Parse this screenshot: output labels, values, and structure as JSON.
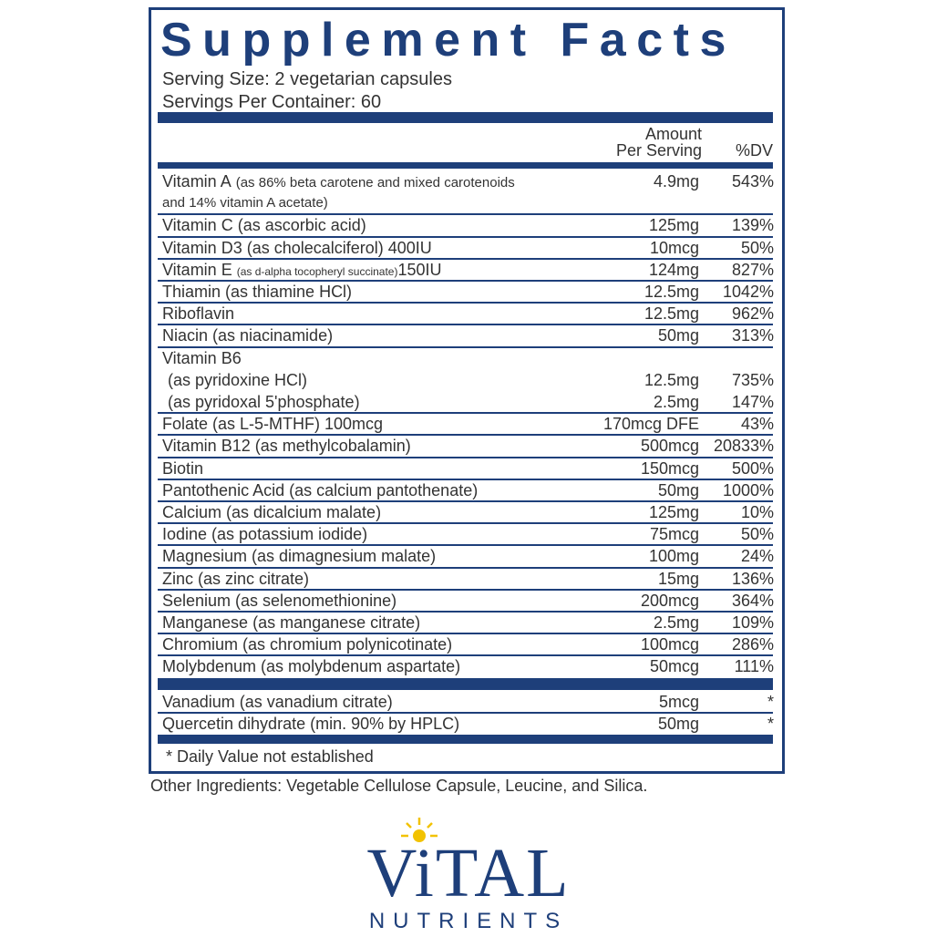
{
  "title": "Supplement Facts",
  "serving_size": "Serving Size: 2 vegetarian capsules",
  "servings_per_container": "Servings Per Container: 60",
  "header": {
    "amount_line1": "Amount",
    "amount_line2": "Per Serving",
    "dv": "%DV"
  },
  "rows": [
    {
      "name": "Vitamin A",
      "note": "(as 86% beta carotene and mixed carotenoids",
      "line2": "and 14% vitamin A acetate)",
      "amount": "4.9mg",
      "dv": "543%"
    },
    {
      "name": "Vitamin C (as ascorbic acid)",
      "amount": "125mg",
      "dv": "139%"
    },
    {
      "name": "Vitamin D3 (as cholecalciferol) 400IU",
      "amount": "10mcg",
      "dv": "50%"
    },
    {
      "name": "Vitamin E",
      "note": "(as d-alpha tocopheryl succinate)",
      "after": "150IU",
      "amount": "124mg",
      "dv": "827%"
    },
    {
      "name": "Thiamin (as thiamine HCl)",
      "amount": "12.5mg",
      "dv": "1042%"
    },
    {
      "name": "Riboflavin",
      "amount": "12.5mg",
      "dv": "962%"
    },
    {
      "name": "Niacin (as niacinamide)",
      "amount": "50mg",
      "dv": "313%"
    },
    {
      "name": "Vitamin B6",
      "forms": [
        {
          "name": "(as pyridoxine HCl)",
          "amount": "12.5mg",
          "dv": "735%"
        },
        {
          "name": "(as pyridoxal 5'phosphate)",
          "amount": "2.5mg",
          "dv": "147%"
        }
      ]
    },
    {
      "name": "Folate (as L-5-MTHF) 100mcg",
      "amount": "170mcg DFE",
      "dv": "43%"
    },
    {
      "name": "Vitamin B12 (as methylcobalamin)",
      "amount": "500mcg",
      "dv": "20833%"
    },
    {
      "name": "Biotin",
      "amount": "150mcg",
      "dv": "500%"
    },
    {
      "name": "Pantothenic Acid (as calcium pantothenate)",
      "amount": "50mg",
      "dv": "1000%"
    },
    {
      "name": "Calcium (as dicalcium malate)",
      "amount": "125mg",
      "dv": "10%"
    },
    {
      "name": "Iodine (as potassium iodide)",
      "amount": "75mcg",
      "dv": "50%"
    },
    {
      "name": "Magnesium (as dimagnesium malate)",
      "amount": "100mg",
      "dv": "24%"
    },
    {
      "name": "Zinc (as zinc citrate)",
      "amount": "15mg",
      "dv": "136%"
    },
    {
      "name": "Selenium (as selenomethionine)",
      "amount": "200mcg",
      "dv": "364%"
    },
    {
      "name": "Manganese (as manganese citrate)",
      "amount": "2.5mg",
      "dv": "109%"
    },
    {
      "name": "Chromium (as chromium polynicotinate)",
      "amount": "100mcg",
      "dv": "286%"
    },
    {
      "name": "Molybdenum (as molybdenum aspartate)",
      "amount": "50mcg",
      "dv": "111%"
    }
  ],
  "other_rows": [
    {
      "name": "Vanadium (as vanadium citrate)",
      "amount": "5mcg",
      "dv": "*"
    },
    {
      "name": "Quercetin dihydrate (min. 90% by HPLC)",
      "amount": "50mg",
      "dv": "*"
    }
  ],
  "footnote": "* Daily Value not established",
  "other_ingredients": "Other Ingredients: Vegetable Cellulose Capsule, Leucine, and Silica.",
  "logo": {
    "brand": "ViTAL",
    "sub": "NUTRIENTS"
  }
}
